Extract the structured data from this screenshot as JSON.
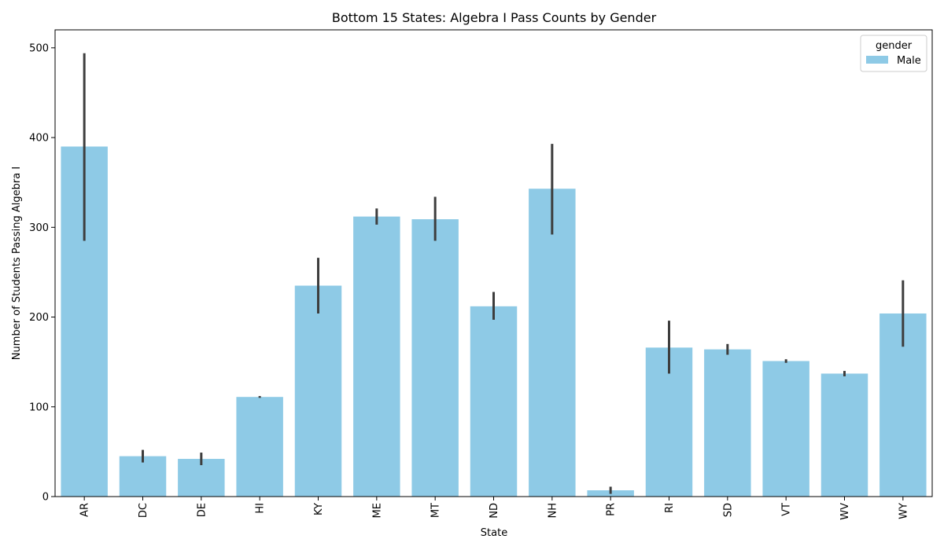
{
  "chart_data": {
    "type": "bar",
    "title": "Bottom 15 States: Algebra I Pass Counts by Gender",
    "xlabel": "State",
    "ylabel": "Number of Students Passing Algebra I",
    "categories": [
      "AR",
      "DC",
      "DE",
      "HI",
      "KY",
      "ME",
      "MT",
      "ND",
      "NH",
      "PR",
      "RI",
      "SD",
      "VT",
      "WV",
      "WY"
    ],
    "series": [
      {
        "name": "Male",
        "color": "#8ecae6",
        "values": [
          390,
          45,
          42,
          111,
          235,
          312,
          309,
          212,
          343,
          7,
          166,
          164,
          151,
          137,
          204
        ],
        "error_low": [
          285,
          38,
          35,
          110,
          204,
          303,
          285,
          197,
          292,
          3,
          137,
          158,
          149,
          134,
          167
        ],
        "error_high": [
          494,
          52,
          49,
          112,
          266,
          321,
          334,
          228,
          393,
          11,
          196,
          170,
          153,
          140,
          241
        ]
      }
    ],
    "ylim": [
      0,
      520
    ],
    "yticks": [
      0,
      100,
      200,
      300,
      400,
      500
    ],
    "legend": {
      "title": "gender",
      "position": "top-right"
    },
    "grid": false,
    "errorbar_color": "#3d3d3d"
  }
}
